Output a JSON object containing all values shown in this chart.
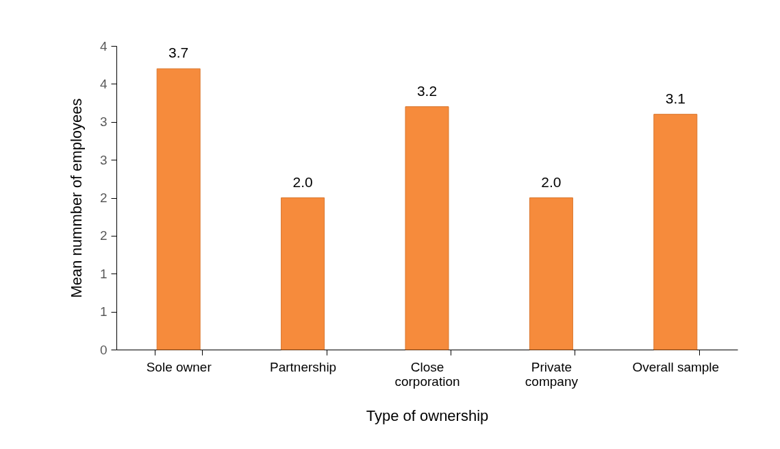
{
  "chart_data": {
    "type": "bar",
    "xlabel": "Type of ownership",
    "ylabel": "Mean nummber of employees",
    "categories": [
      "Sole owner",
      "Partnership",
      "Close corporation",
      "Private company",
      "Overall sample"
    ],
    "values": [
      3.7,
      2.0,
      3.2,
      2.0,
      3.1
    ],
    "color": "#f68b3c",
    "value_labels": [
      "3.7",
      "2.0",
      "3.2",
      "2.0",
      "3.1"
    ],
    "ylim": [
      0,
      4
    ],
    "yticks": [
      0,
      {
        "value": 0.5,
        "label": "1"
      },
      1,
      {
        "value": 1.5,
        "label": "2"
      },
      2,
      {
        "value": 2.5,
        "label": "3"
      },
      3,
      {
        "value": 3.5,
        "label": "4"
      },
      4
    ],
    "grid": false
  }
}
